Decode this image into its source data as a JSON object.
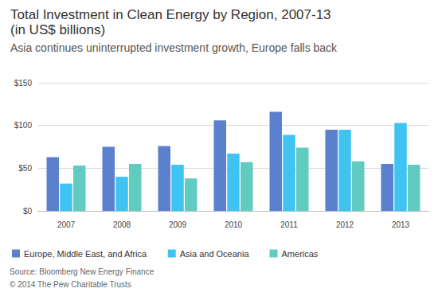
{
  "chart_data": {
    "type": "bar",
    "title": "Total Investment in Clean Energy by Region, 2007-13\n(in US$ billions)",
    "subtitle": "Asia continues uninterrupted investment growth, Europe falls back",
    "annotations": [
      "Source: Bloomberg New Energy Finance",
      "© 2014 The Pew Charitable Trusts"
    ],
    "categories": [
      "2007",
      "2008",
      "2009",
      "2010",
      "2011",
      "2012",
      "2013"
    ],
    "series": [
      {
        "name": "Europe, Middle East, and Africa",
        "color": "#5b80ce",
        "values": [
          63,
          75,
          76,
          106,
          116,
          95,
          55
        ]
      },
      {
        "name": "Asia and Oceania",
        "color": "#3fc3f0",
        "values": [
          32,
          40,
          54,
          67,
          89,
          95,
          103
        ]
      },
      {
        "name": "Americas",
        "color": "#62cbc0",
        "values": [
          53,
          55,
          38,
          57,
          74,
          58,
          54
        ]
      }
    ],
    "ylim": [
      0,
      150
    ],
    "yticks": [
      {
        "value": 0,
        "label": "$0"
      },
      {
        "value": 50,
        "label": "$50"
      },
      {
        "value": 100,
        "label": "$100"
      },
      {
        "value": 150,
        "label": "$150"
      }
    ],
    "grid": true,
    "legend": "bottom"
  }
}
